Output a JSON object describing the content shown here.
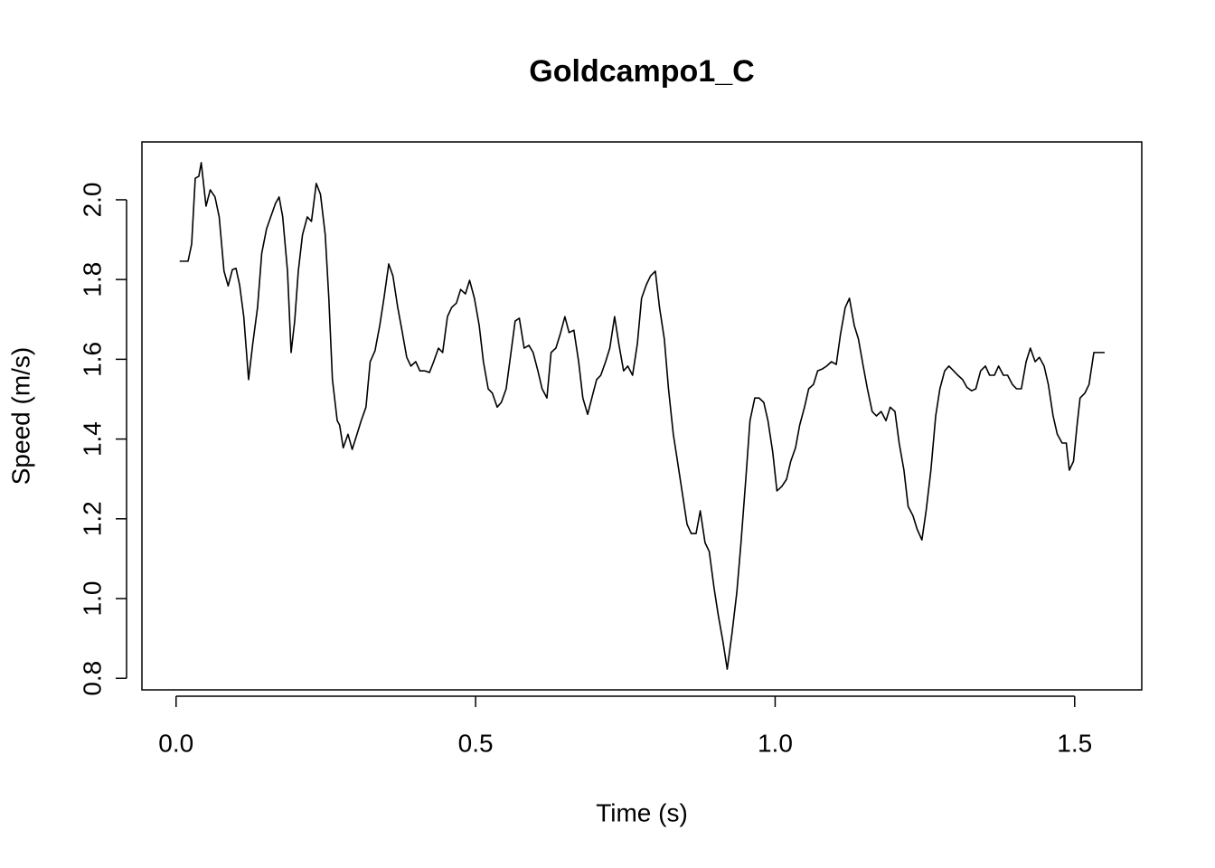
{
  "chart_data": {
    "type": "line",
    "title": "Goldcampo1_C",
    "x_label": "Time (s)",
    "y_label": "Speed (m/s)",
    "x": [
      0.006,
      0.02,
      0.026,
      0.032,
      0.038,
      0.042,
      0.05,
      0.057,
      0.065,
      0.072,
      0.08,
      0.087,
      0.094,
      0.1,
      0.106,
      0.113,
      0.121,
      0.128,
      0.136,
      0.143,
      0.151,
      0.158,
      0.166,
      0.172,
      0.178,
      0.186,
      0.192,
      0.198,
      0.204,
      0.211,
      0.219,
      0.226,
      0.234,
      0.241,
      0.249,
      0.255,
      0.261,
      0.269,
      0.273,
      0.279,
      0.287,
      0.294,
      0.302,
      0.309,
      0.317,
      0.324,
      0.332,
      0.34,
      0.347,
      0.355,
      0.362,
      0.37,
      0.377,
      0.385,
      0.392,
      0.4,
      0.407,
      0.415,
      0.423,
      0.43,
      0.438,
      0.445,
      0.453,
      0.46,
      0.468,
      0.475,
      0.483,
      0.49,
      0.498,
      0.506,
      0.513,
      0.521,
      0.528,
      0.536,
      0.543,
      0.551,
      0.558,
      0.566,
      0.573,
      0.581,
      0.589,
      0.596,
      0.604,
      0.611,
      0.619,
      0.626,
      0.634,
      0.641,
      0.649,
      0.656,
      0.664,
      0.672,
      0.679,
      0.687,
      0.694,
      0.702,
      0.709,
      0.717,
      0.724,
      0.732,
      0.739,
      0.747,
      0.754,
      0.762,
      0.77,
      0.777,
      0.785,
      0.792,
      0.8,
      0.807,
      0.815,
      0.822,
      0.83,
      0.837,
      0.845,
      0.853,
      0.86,
      0.868,
      0.875,
      0.883,
      0.89,
      0.898,
      0.905,
      0.913,
      0.92,
      0.928,
      0.936,
      0.943,
      0.951,
      0.958,
      0.966,
      0.973,
      0.981,
      0.988,
      0.996,
      1.003,
      1.011,
      1.019,
      1.026,
      1.034,
      1.041,
      1.049,
      1.056,
      1.064,
      1.071,
      1.079,
      1.086,
      1.094,
      1.102,
      1.109,
      1.117,
      1.124,
      1.132,
      1.139,
      1.147,
      1.154,
      1.162,
      1.169,
      1.177,
      1.185,
      1.192,
      1.2,
      1.207,
      1.215,
      1.222,
      1.23,
      1.237,
      1.245,
      1.252,
      1.26,
      1.268,
      1.275,
      1.283,
      1.29,
      1.298,
      1.305,
      1.313,
      1.32,
      1.328,
      1.335,
      1.343,
      1.351,
      1.358,
      1.366,
      1.373,
      1.381,
      1.388,
      1.396,
      1.403,
      1.411,
      1.419,
      1.426,
      1.434,
      1.441,
      1.449,
      1.456,
      1.464,
      1.471,
      1.479,
      1.486,
      1.491,
      1.498,
      1.504,
      1.509,
      1.517,
      1.524,
      1.532,
      1.55
    ],
    "values": [
      1.846,
      1.846,
      1.889,
      2.054,
      2.059,
      2.093,
      1.984,
      2.025,
      2.007,
      1.957,
      1.821,
      1.784,
      1.825,
      1.828,
      1.787,
      1.707,
      1.549,
      1.639,
      1.73,
      1.866,
      1.927,
      1.957,
      1.991,
      2.007,
      1.957,
      1.821,
      1.617,
      1.696,
      1.821,
      1.912,
      1.957,
      1.946,
      2.041,
      2.014,
      1.912,
      1.753,
      1.549,
      1.446,
      1.435,
      1.378,
      1.412,
      1.374,
      1.412,
      1.446,
      1.48,
      1.594,
      1.621,
      1.685,
      1.753,
      1.839,
      1.809,
      1.73,
      1.673,
      1.605,
      1.583,
      1.594,
      1.571,
      1.571,
      1.567,
      1.594,
      1.628,
      1.617,
      1.707,
      1.73,
      1.741,
      1.775,
      1.764,
      1.798,
      1.753,
      1.685,
      1.594,
      1.526,
      1.515,
      1.48,
      1.492,
      1.526,
      1.605,
      1.696,
      1.703,
      1.628,
      1.635,
      1.617,
      1.571,
      1.526,
      1.503,
      1.617,
      1.628,
      1.662,
      1.707,
      1.667,
      1.673,
      1.594,
      1.503,
      1.462,
      1.503,
      1.549,
      1.56,
      1.594,
      1.628,
      1.707,
      1.639,
      1.571,
      1.583,
      1.56,
      1.639,
      1.753,
      1.787,
      1.809,
      1.821,
      1.73,
      1.651,
      1.526,
      1.412,
      1.344,
      1.265,
      1.186,
      1.163,
      1.163,
      1.22,
      1.14,
      1.118,
      1.027,
      0.959,
      0.891,
      0.823,
      0.913,
      1.015,
      1.14,
      1.299,
      1.446,
      1.503,
      1.503,
      1.492,
      1.446,
      1.367,
      1.27,
      1.281,
      1.299,
      1.344,
      1.378,
      1.435,
      1.48,
      1.526,
      1.537,
      1.571,
      1.576,
      1.583,
      1.594,
      1.587,
      1.662,
      1.73,
      1.753,
      1.685,
      1.651,
      1.583,
      1.526,
      1.469,
      1.458,
      1.469,
      1.446,
      1.48,
      1.469,
      1.39,
      1.322,
      1.231,
      1.208,
      1.174,
      1.147,
      1.22,
      1.322,
      1.458,
      1.526,
      1.571,
      1.583,
      1.571,
      1.56,
      1.549,
      1.53,
      1.521,
      1.526,
      1.571,
      1.583,
      1.56,
      1.56,
      1.583,
      1.56,
      1.56,
      1.537,
      1.526,
      1.526,
      1.594,
      1.628,
      1.594,
      1.605,
      1.583,
      1.537,
      1.458,
      1.412,
      1.39,
      1.39,
      1.322,
      1.344,
      1.435,
      1.503,
      1.515,
      1.537,
      1.617,
      1.617
    ],
    "color": "#000000",
    "xlim": [
      -0.057,
      1.612
    ],
    "ylim": [
      0.771,
      2.145
    ],
    "xticks": [
      {
        "value": 0,
        "label": "0.0"
      },
      0.5,
      {
        "value": 1,
        "label": "1.0"
      },
      1.5
    ],
    "yticks": [
      0.8,
      {
        "value": 1,
        "label": "1.0"
      },
      1.2,
      1.4,
      1.6,
      1.8,
      {
        "value": 2,
        "label": "2.0"
      }
    ]
  }
}
